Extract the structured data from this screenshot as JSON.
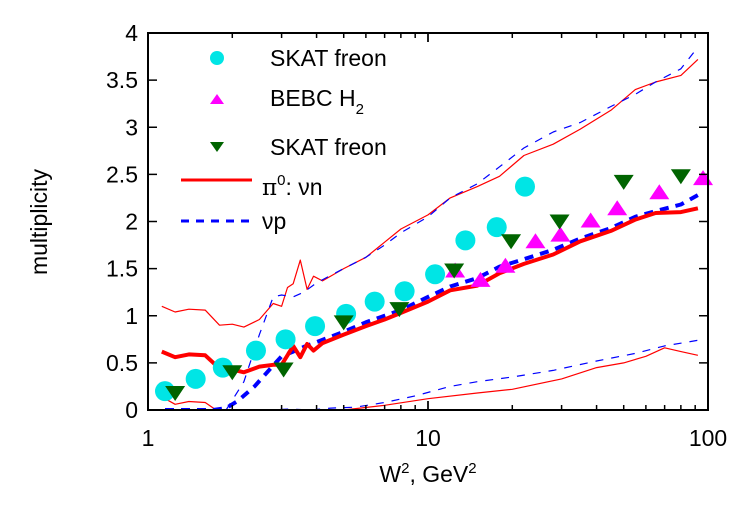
{
  "chart_data": {
    "type": "scatter",
    "title": "",
    "xlabel": "W², GeV²",
    "xlabel_parts": {
      "base1": "W",
      "sup1": "2",
      "mid": ", GeV",
      "sup2": "2"
    },
    "ylabel": "multiplicity",
    "xscale": "log",
    "xlim": [
      1,
      100
    ],
    "ylim": [
      0,
      4
    ],
    "xticks": [
      1,
      10,
      100
    ],
    "xtick_labels": [
      "1",
      "10",
      "100"
    ],
    "yticks": [
      0,
      0.5,
      1,
      1.5,
      2,
      2.5,
      3,
      3.5,
      4
    ],
    "ytick_labels": [
      "0",
      "0.5",
      "1",
      "1.5",
      "2",
      "2.5",
      "3",
      "3.5",
      "4"
    ],
    "grid": false,
    "legend_position": "upper left",
    "legend": [
      {
        "label": "SKAT freon",
        "marker": "circle",
        "color": "#00e5e5"
      },
      {
        "label_base": "BEBC H",
        "label_sub": "2",
        "label": "BEBC H2",
        "marker": "triangle-up",
        "color": "#ff00ff"
      },
      {
        "label": "SKAT freon",
        "marker": "triangle-down",
        "color": "#006400"
      },
      {
        "label_base": "π",
        "label_sup": "0",
        "label_rest": ": νn",
        "label": "π0: νn",
        "line": "solid",
        "color": "#ff0000"
      },
      {
        "label": "νp",
        "line": "dashed",
        "color": "#0000ff"
      }
    ],
    "series": [
      {
        "name": "SKAT freon (circles)",
        "kind": "points",
        "marker": "circle",
        "color": "#00e5e5",
        "x": [
          1.15,
          1.48,
          1.85,
          2.43,
          3.1,
          3.95,
          5.1,
          6.45,
          8.25,
          10.6,
          13.6,
          17.6,
          22.2
        ],
        "y": [
          0.2,
          0.33,
          0.45,
          0.63,
          0.75,
          0.89,
          1.02,
          1.15,
          1.26,
          1.44,
          1.8,
          1.94,
          2.37
        ]
      },
      {
        "name": "BEBC H2",
        "kind": "points",
        "marker": "triangle-up",
        "color": "#ff00ff",
        "x": [
          12.5,
          15.4,
          18.9,
          24.2,
          29.7,
          38.1,
          47.4,
          67,
          96
        ],
        "y": [
          1.47,
          1.37,
          1.52,
          1.78,
          1.85,
          2.0,
          2.13,
          2.3,
          2.45
        ]
      },
      {
        "name": "SKAT freon (triangles)",
        "kind": "points",
        "marker": "triangle-down",
        "color": "#006400",
        "x": [
          1.25,
          2.0,
          3.05,
          5.0,
          7.9,
          12.4,
          19.8,
          29.5,
          50,
          80
        ],
        "y": [
          0.18,
          0.4,
          0.43,
          0.93,
          1.07,
          1.48,
          1.79,
          2.0,
          2.42,
          2.48
        ]
      },
      {
        "name": "π0: νn",
        "kind": "line",
        "style": "solid-thick",
        "color": "#ff0000",
        "x": [
          1.12,
          1.25,
          1.4,
          1.6,
          1.8,
          2.0,
          2.2,
          2.5,
          2.8,
          3.0,
          3.15,
          3.3,
          3.5,
          3.7,
          3.9,
          4.2,
          5,
          6,
          7,
          8,
          10,
          12,
          15,
          18,
          22,
          28,
          35,
          45,
          55,
          65,
          80,
          92
        ],
        "y": [
          0.62,
          0.56,
          0.59,
          0.58,
          0.44,
          0.43,
          0.4,
          0.46,
          0.48,
          0.48,
          0.58,
          0.68,
          0.56,
          0.7,
          0.63,
          0.71,
          0.8,
          0.89,
          0.96,
          1.03,
          1.15,
          1.27,
          1.32,
          1.45,
          1.55,
          1.65,
          1.79,
          1.9,
          2.02,
          2.09,
          2.1,
          2.14
        ]
      },
      {
        "name": "νp",
        "kind": "line",
        "style": "dashed-thick",
        "color": "#0000ff",
        "x": [
          1.15,
          1.4,
          1.7,
          1.9,
          2.1,
          2.4,
          2.7,
          3.0,
          3.3,
          3.6,
          4.0,
          5,
          6,
          7,
          8,
          10,
          12,
          15,
          18,
          22,
          28,
          35,
          45,
          55,
          65,
          80,
          92
        ],
        "y": [
          0.0,
          0.0,
          0.0,
          0.02,
          0.1,
          0.25,
          0.42,
          0.57,
          0.62,
          0.67,
          0.72,
          0.83,
          0.93,
          1.0,
          1.06,
          1.2,
          1.31,
          1.4,
          1.52,
          1.6,
          1.7,
          1.82,
          1.93,
          2.05,
          2.11,
          2.18,
          2.28
        ]
      },
      {
        "name": "π0: νn upper band",
        "kind": "line",
        "style": "solid-thin",
        "color": "#ff0000",
        "x": [
          1.12,
          1.25,
          1.4,
          1.6,
          1.8,
          2.0,
          2.2,
          2.5,
          2.8,
          3.0,
          3.15,
          3.3,
          3.5,
          3.7,
          3.9,
          4.2,
          5,
          6,
          7,
          8,
          10,
          12,
          15,
          18,
          22,
          28,
          35,
          45,
          55,
          65,
          80,
          92
        ],
        "y": [
          1.1,
          1.04,
          1.07,
          1.06,
          0.9,
          0.91,
          0.88,
          0.96,
          1.13,
          1.1,
          1.3,
          1.34,
          1.59,
          1.28,
          1.42,
          1.37,
          1.5,
          1.62,
          1.78,
          1.92,
          2.07,
          2.25,
          2.37,
          2.48,
          2.7,
          2.82,
          2.98,
          3.18,
          3.4,
          3.48,
          3.55,
          3.72
        ]
      },
      {
        "name": "π0: νn lower band",
        "kind": "line",
        "style": "solid-thin",
        "color": "#ff0000",
        "x": [
          1.12,
          1.25,
          1.4,
          1.6,
          1.75,
          5,
          7,
          10,
          15,
          20,
          30,
          40,
          50,
          60,
          70,
          80,
          92
        ],
        "y": [
          0.14,
          0.06,
          0.09,
          0.08,
          0.0,
          0.0,
          0.05,
          0.12,
          0.18,
          0.22,
          0.33,
          0.45,
          0.5,
          0.57,
          0.66,
          0.62,
          0.58
        ]
      },
      {
        "name": "νp upper band",
        "kind": "line",
        "style": "dashed-thin",
        "color": "#0000ff",
        "x": [
          1.9,
          2.2,
          2.5,
          2.8,
          3.0,
          3.3,
          3.6,
          4.0,
          5,
          6,
          7,
          8,
          10,
          12,
          15,
          18,
          22,
          28,
          35,
          45,
          55,
          65,
          80,
          92
        ],
        "y": [
          0.0,
          0.3,
          0.8,
          1.2,
          1.22,
          1.2,
          1.25,
          1.35,
          1.5,
          1.62,
          1.75,
          1.88,
          2.05,
          2.25,
          2.4,
          2.58,
          2.78,
          2.95,
          3.05,
          3.22,
          3.35,
          3.48,
          3.62,
          3.85
        ]
      },
      {
        "name": "νp lower band",
        "kind": "line",
        "style": "dashed-thin",
        "color": "#0000ff",
        "x": [
          2.6,
          3.2,
          3.8,
          4.5,
          5.5,
          7,
          9,
          12,
          15,
          20,
          28,
          40,
          55,
          70,
          92
        ],
        "y": [
          0.0,
          0.01,
          0.0,
          0.02,
          0.03,
          0.08,
          0.15,
          0.25,
          0.3,
          0.35,
          0.42,
          0.52,
          0.6,
          0.68,
          0.74
        ]
      }
    ]
  }
}
